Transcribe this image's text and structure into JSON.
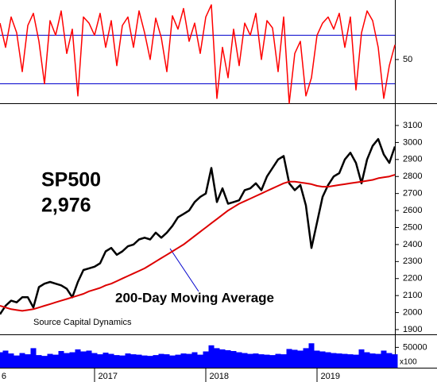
{
  "chart_data": [
    {
      "type": "line",
      "color": "#ff0000",
      "hlines": [
        30,
        70
      ],
      "hline_color": "#0000cc",
      "xlim": [
        2016.15,
        2019.7
      ],
      "ylim": [
        14,
        99
      ],
      "yticks": [
        50
      ],
      "x": [
        2016.15,
        2016.2,
        2016.25,
        2016.3,
        2016.35,
        2016.4,
        2016.45,
        2016.5,
        2016.55,
        2016.6,
        2016.65,
        2016.7,
        2016.75,
        2016.8,
        2016.85,
        2016.9,
        2016.95,
        2017.0,
        2017.05,
        2017.1,
        2017.15,
        2017.2,
        2017.25,
        2017.3,
        2017.35,
        2017.4,
        2017.45,
        2017.5,
        2017.55,
        2017.6,
        2017.65,
        2017.7,
        2017.75,
        2017.8,
        2017.85,
        2017.9,
        2017.95,
        2018.0,
        2018.05,
        2018.1,
        2018.15,
        2018.2,
        2018.25,
        2018.3,
        2018.35,
        2018.4,
        2018.45,
        2018.5,
        2018.55,
        2018.6,
        2018.65,
        2018.7,
        2018.75,
        2018.8,
        2018.85,
        2018.9,
        2018.95,
        2019.0,
        2019.05,
        2019.1,
        2019.15,
        2019.2,
        2019.25,
        2019.3,
        2019.35,
        2019.4,
        2019.45,
        2019.5,
        2019.55,
        2019.6,
        2019.65,
        2019.7
      ],
      "values": [
        80,
        60,
        85,
        72,
        40,
        78,
        88,
        65,
        30,
        82,
        70,
        90,
        55,
        75,
        20,
        85,
        80,
        70,
        88,
        60,
        82,
        45,
        78,
        85,
        60,
        90,
        72,
        50,
        84,
        68,
        40,
        86,
        75,
        92,
        65,
        80,
        55,
        85,
        95,
        18,
        60,
        35,
        75,
        45,
        80,
        70,
        88,
        50,
        82,
        76,
        40,
        85,
        14,
        55,
        65,
        20,
        35,
        70,
        80,
        85,
        75,
        88,
        60,
        85,
        25,
        72,
        90,
        82,
        60,
        18,
        45,
        62
      ]
    },
    {
      "type": "line",
      "title": "SP500",
      "subtitle": "2,976",
      "source": "Source Capital Dynamics",
      "text_color": "#0000cc",
      "xlim": [
        2016.15,
        2019.7
      ],
      "ylim": [
        1872,
        3226
      ],
      "yticks": [
        1900,
        2000,
        2100,
        2200,
        2300,
        2400,
        2500,
        2600,
        2700,
        2800,
        2900,
        3000,
        3100
      ],
      "x": [
        2016.15,
        2016.2,
        2016.25,
        2016.3,
        2016.35,
        2016.4,
        2016.45,
        2016.5,
        2016.55,
        2016.6,
        2016.65,
        2016.7,
        2016.75,
        2016.8,
        2016.85,
        2016.9,
        2016.95,
        2017.0,
        2017.05,
        2017.1,
        2017.15,
        2017.2,
        2017.25,
        2017.3,
        2017.35,
        2017.4,
        2017.45,
        2017.5,
        2017.55,
        2017.6,
        2017.65,
        2017.7,
        2017.75,
        2017.8,
        2017.85,
        2017.9,
        2017.95,
        2018.0,
        2018.05,
        2018.1,
        2018.15,
        2018.2,
        2018.25,
        2018.3,
        2018.35,
        2018.4,
        2018.45,
        2018.5,
        2018.55,
        2018.6,
        2018.65,
        2018.7,
        2018.75,
        2018.8,
        2018.85,
        2018.9,
        2018.95,
        2019.0,
        2019.05,
        2019.1,
        2019.15,
        2019.2,
        2019.25,
        2019.3,
        2019.35,
        2019.4,
        2019.45,
        2019.5,
        2019.55,
        2019.6,
        2019.65,
        2019.7
      ],
      "series": [
        {
          "color": "#000000",
          "values": [
            1990,
            2040,
            2070,
            2060,
            2090,
            2090,
            2030,
            2150,
            2170,
            2180,
            2170,
            2160,
            2140,
            2090,
            2180,
            2250,
            2260,
            2270,
            2290,
            2360,
            2380,
            2340,
            2360,
            2390,
            2400,
            2430,
            2440,
            2430,
            2470,
            2440,
            2470,
            2510,
            2560,
            2580,
            2600,
            2650,
            2680,
            2700,
            2850,
            2650,
            2730,
            2640,
            2650,
            2660,
            2720,
            2730,
            2760,
            2720,
            2800,
            2850,
            2900,
            2920,
            2760,
            2720,
            2750,
            2630,
            2380,
            2530,
            2680,
            2750,
            2800,
            2820,
            2900,
            2940,
            2880,
            2760,
            2900,
            2980,
            3020,
            2930,
            2880,
            2976
          ]
        },
        {
          "name": "200-Day Moving Average",
          "color": "#dd0000",
          "values": [
            2040,
            2030,
            2020,
            2015,
            2010,
            2015,
            2020,
            2030,
            2040,
            2050,
            2060,
            2070,
            2080,
            2090,
            2100,
            2110,
            2125,
            2135,
            2145,
            2160,
            2170,
            2185,
            2200,
            2215,
            2230,
            2245,
            2260,
            2280,
            2300,
            2320,
            2340,
            2360,
            2380,
            2400,
            2425,
            2450,
            2475,
            2500,
            2525,
            2550,
            2575,
            2600,
            2620,
            2640,
            2655,
            2670,
            2685,
            2700,
            2715,
            2730,
            2745,
            2760,
            2770,
            2770,
            2765,
            2760,
            2755,
            2745,
            2740,
            2740,
            2745,
            2750,
            2755,
            2760,
            2765,
            2770,
            2775,
            2780,
            2790,
            2795,
            2800,
            2810
          ]
        }
      ]
    },
    {
      "type": "bar",
      "color": "#0000ff",
      "unit_label": "x100",
      "xlim": [
        2016.15,
        2019.7
      ],
      "ylim": [
        0,
        80000
      ],
      "yticks": [
        50000
      ],
      "xticks": [
        {
          "value": 2016,
          "label": "6"
        },
        2017,
        2018,
        2019
      ],
      "x": [
        2016.15,
        2016.2,
        2016.25,
        2016.3,
        2016.35,
        2016.4,
        2016.45,
        2016.5,
        2016.55,
        2016.6,
        2016.65,
        2016.7,
        2016.75,
        2016.8,
        2016.85,
        2016.9,
        2016.95,
        2017.0,
        2017.05,
        2017.1,
        2017.15,
        2017.2,
        2017.25,
        2017.3,
        2017.35,
        2017.4,
        2017.45,
        2017.5,
        2017.55,
        2017.6,
        2017.65,
        2017.7,
        2017.75,
        2017.8,
        2017.85,
        2017.9,
        2017.95,
        2018.0,
        2018.05,
        2018.1,
        2018.15,
        2018.2,
        2018.25,
        2018.3,
        2018.35,
        2018.4,
        2018.45,
        2018.5,
        2018.55,
        2018.6,
        2018.65,
        2018.7,
        2018.75,
        2018.8,
        2018.85,
        2018.9,
        2018.95,
        2019.0,
        2019.05,
        2019.1,
        2019.15,
        2019.2,
        2019.25,
        2019.3,
        2019.35,
        2019.4,
        2019.45,
        2019.5,
        2019.55,
        2019.6,
        2019.65,
        2019.7
      ],
      "values": [
        38000,
        42000,
        35000,
        30000,
        36000,
        33000,
        48000,
        31000,
        29000,
        34000,
        32000,
        41000,
        36000,
        38000,
        45000,
        40000,
        42000,
        36000,
        33000,
        37000,
        34000,
        31000,
        30000,
        35000,
        33000,
        32000,
        30000,
        29000,
        31000,
        34000,
        33000,
        30000,
        32000,
        35000,
        34000,
        38000,
        32000,
        40000,
        55000,
        48000,
        45000,
        43000,
        41000,
        38000,
        36000,
        34000,
        35000,
        33000,
        32000,
        31000,
        34000,
        33000,
        46000,
        44000,
        42000,
        48000,
        60000,
        42000,
        40000,
        38000,
        36000,
        35000,
        34000,
        33000,
        32000,
        45000,
        38000,
        35000,
        34000,
        42000,
        36000,
        33000
      ]
    }
  ]
}
